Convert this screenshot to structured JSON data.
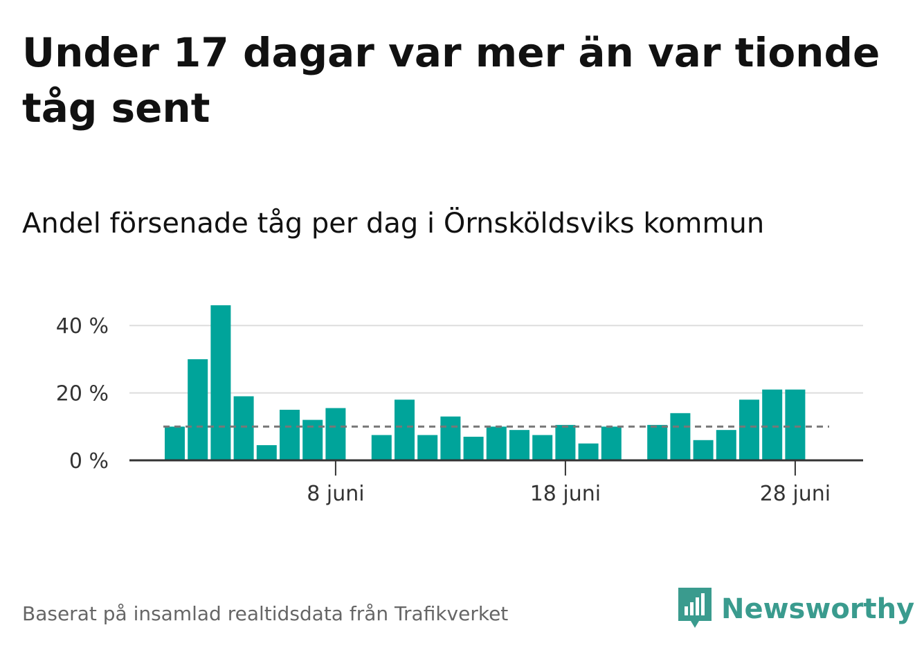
{
  "title": "Under 17 dagar var mer än var tionde tåg sent",
  "subtitle": "Andel försenade tåg per dag i Örnsköldsviks kommun",
  "footer": "Baserat på insamlad realtidsdata från Trafikverket",
  "logo": {
    "text": "Newsworthy",
    "icon": "newsworthy-bar-chart-icon"
  },
  "colors": {
    "bar": "#00a49a",
    "reference": "#777777",
    "grid": "#dddddd",
    "axis": "#333333",
    "brand": "#3a9b8e"
  },
  "chart_data": {
    "type": "bar",
    "x": [
      "1 juni",
      "2 juni",
      "3 juni",
      "4 juni",
      "5 juni",
      "6 juni",
      "7 juni",
      "8 juni",
      "9 juni",
      "10 juni",
      "11 juni",
      "12 juni",
      "13 juni",
      "14 juni",
      "15 juni",
      "16 juni",
      "17 juni",
      "18 juni",
      "19 juni",
      "20 juni",
      "21 juni",
      "22 juni",
      "23 juni",
      "24 juni",
      "25 juni",
      "26 juni",
      "27 juni",
      "28 juni"
    ],
    "values": [
      10,
      30,
      46,
      19,
      4.5,
      15,
      12,
      15.5,
      null,
      7.5,
      18,
      7.5,
      13,
      7,
      10,
      9,
      7.5,
      10.5,
      5,
      10,
      null,
      10.5,
      14,
      6,
      9,
      18,
      21,
      21
    ],
    "reference_line": 10,
    "ylim": [
      0,
      46
    ],
    "yticks": [
      0,
      20,
      40
    ],
    "ytick_labels": [
      "0 %",
      "20 %",
      "40 %"
    ],
    "xticks": [
      "8 juni",
      "18 juni",
      "28 juni"
    ],
    "grid": true
  }
}
